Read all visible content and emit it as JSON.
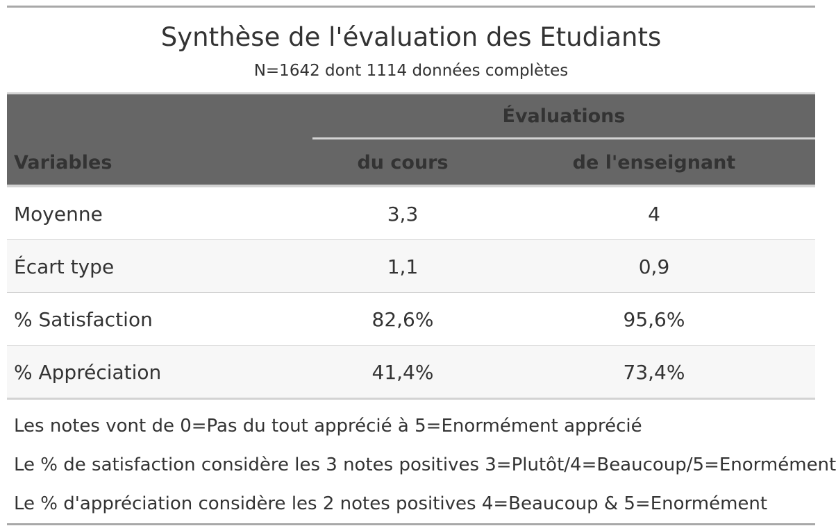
{
  "header": {
    "title": "Synthèse de l'évaluation des Etudiants",
    "subtitle": "N=1642 dont 1114 données complètes"
  },
  "table": {
    "spanner_label": "Évaluations",
    "columns": [
      "Variables",
      "du cours",
      "de l'enseignant"
    ],
    "rows": [
      {
        "label": "Moyenne",
        "cours": "3,3",
        "enseignant": "4"
      },
      {
        "label": "Écart type",
        "cours": "1,1",
        "enseignant": "0,9"
      },
      {
        "label": "% Satisfaction",
        "cours": "82,6%",
        "enseignant": "95,6%"
      },
      {
        "label": "% Appréciation",
        "cours": "41,4%",
        "enseignant": "73,4%"
      }
    ]
  },
  "footnotes": [
    "Les notes vont de 0=Pas du tout apprécié à 5=Enormément apprécié",
    "Le % de satisfaction considère les 3 notes positives 3=Plutôt/4=Beaucoup/5=Enormément",
    "Le % d'appréciation considère les 2 notes positives 4=Beaucoup & 5=Enormément"
  ],
  "colors": {
    "header_bg": "#666666",
    "rule_dark": "#a8a8a8",
    "rule_light": "#d3d3d3",
    "stripe": "#f7f7f7",
    "text": "#333333"
  }
}
